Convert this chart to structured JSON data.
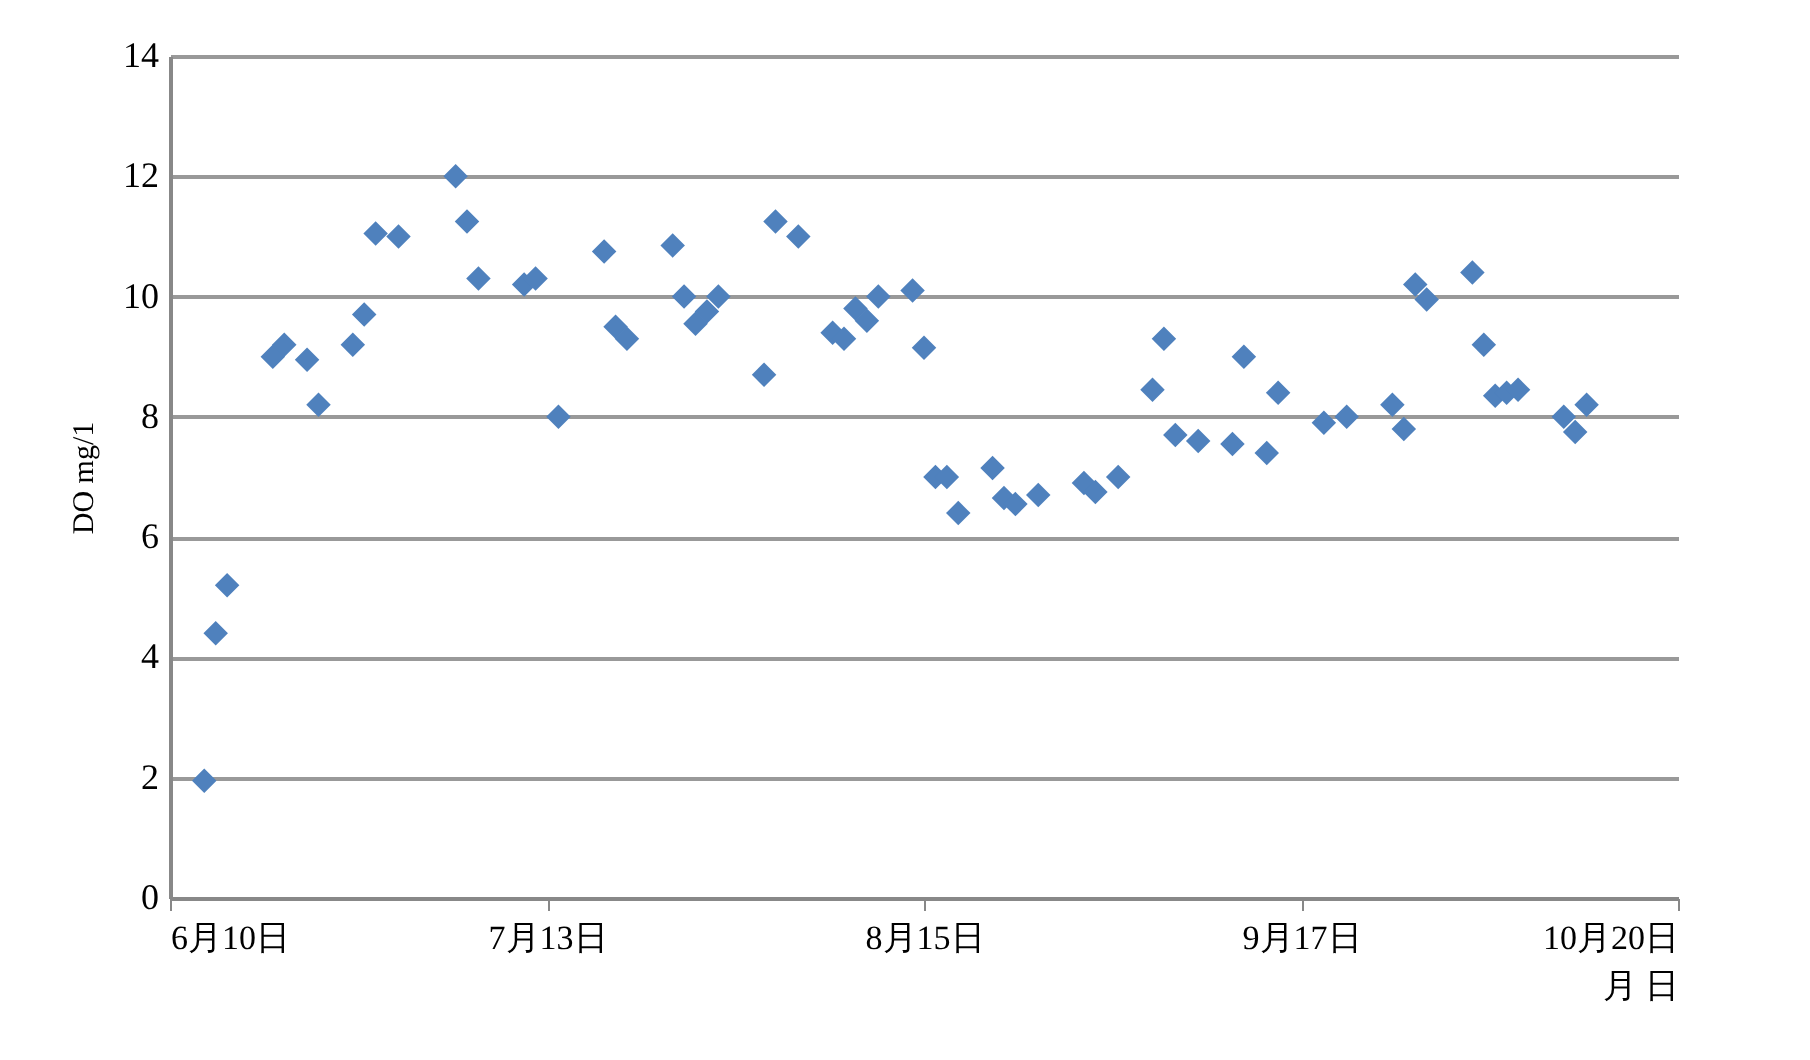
{
  "chart_data": {
    "type": "scatter",
    "xlabel": "月 日",
    "ylabel": "DO mg/1",
    "x": [
      "--06-13",
      "--06-14",
      "--06-15",
      "--06-19",
      "--06-20",
      "--06-22",
      "--06-23",
      "--06-26",
      "--06-27",
      "--06-28",
      "--06-30",
      "--07-05",
      "--07-06",
      "--07-07",
      "--07-11",
      "--07-12",
      "--07-14",
      "--07-18",
      "--07-19",
      "--07-20",
      "--07-24",
      "--07-25",
      "--07-26",
      "--07-27",
      "--07-28",
      "--08-01",
      "--08-02",
      "--08-04",
      "--08-07",
      "--08-08",
      "--08-09",
      "--08-10",
      "--08-11",
      "--08-14",
      "--08-15",
      "--08-16",
      "--08-17",
      "--08-18",
      "--08-21",
      "--08-22",
      "--08-23",
      "--08-25",
      "--08-29",
      "--08-30",
      "--09-01",
      "--09-04",
      "--09-05",
      "--09-06",
      "--09-08",
      "--09-11",
      "--09-12",
      "--09-14",
      "--09-15",
      "--09-19",
      "--09-21",
      "--09-25",
      "--09-26",
      "--09-27",
      "--09-28",
      "--10-02",
      "--10-03",
      "--10-04",
      "--10-05",
      "--10-06",
      "--10-10",
      "--10-11",
      "--10-12"
    ],
    "series": [
      {
        "color": "#4f81bd",
        "values": [
          1.95,
          4.4,
          5.2,
          9.0,
          9.2,
          8.95,
          8.2,
          9.2,
          9.7,
          11.05,
          11.0,
          12.0,
          11.25,
          10.3,
          10.2,
          10.3,
          8.0,
          10.75,
          9.5,
          9.3,
          10.85,
          10.0,
          9.55,
          9.75,
          10.0,
          8.7,
          11.25,
          11.0,
          9.4,
          9.3,
          9.8,
          9.6,
          10.0,
          10.1,
          9.15,
          7.0,
          7.0,
          6.4,
          7.15,
          6.65,
          6.55,
          6.7,
          6.9,
          6.75,
          7.0,
          8.45,
          9.3,
          7.7,
          7.6,
          7.55,
          9.0,
          7.4,
          8.4,
          7.9,
          8.0,
          8.2,
          7.8,
          10.2,
          9.95,
          10.4,
          9.2,
          8.35,
          8.4,
          8.45,
          8.0,
          7.75,
          8.2
        ]
      }
    ],
    "xlim": [
      "--06-10",
      "--10-20"
    ],
    "xticks": [
      {
        "value": "--06-10",
        "label": "6月10日"
      },
      {
        "value": "--07-13",
        "label": "7月13日"
      },
      {
        "value": "--08-15",
        "label": "8月15日"
      },
      {
        "value": "--09-17",
        "label": "9月17日"
      },
      {
        "value": "--10-20",
        "label": "10月20日"
      }
    ],
    "ylim": [
      0,
      14
    ],
    "yticks": [
      0,
      2,
      4,
      6,
      8,
      10,
      12,
      14
    ],
    "grid": "y",
    "marker": "diamond",
    "legend": false
  }
}
